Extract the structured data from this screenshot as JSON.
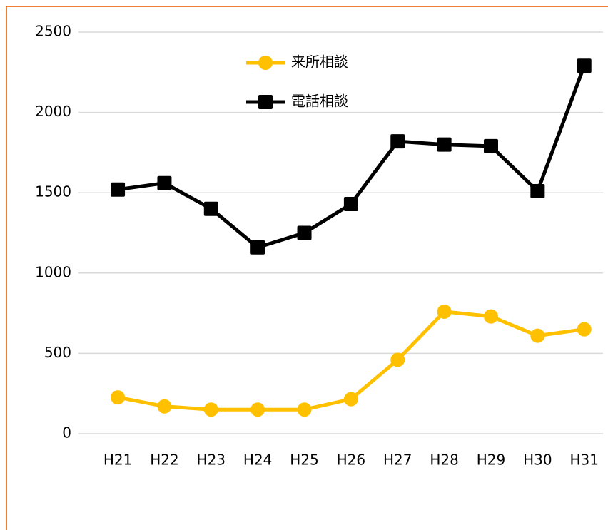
{
  "chart_data": {
    "type": "line",
    "categories": [
      "H21",
      "H22",
      "H23",
      "H24",
      "H25",
      "H26",
      "H27",
      "H28",
      "H29",
      "H30",
      "H31"
    ],
    "series": [
      {
        "name": "来所相談",
        "color": "#FFC000",
        "marker": "circle",
        "values": [
          226,
          170,
          150,
          150,
          150,
          215,
          460,
          760,
          730,
          610,
          650
        ]
      },
      {
        "name": "電話相談",
        "color": "#000000",
        "marker": "square",
        "values": [
          1520,
          1560,
          1400,
          1160,
          1250,
          1430,
          1820,
          1800,
          1790,
          1510,
          2290
        ]
      }
    ],
    "ylim": [
      0,
      2500
    ],
    "yticks": [
      0,
      500,
      1000,
      1500,
      2000,
      2500
    ],
    "grid": true
  }
}
